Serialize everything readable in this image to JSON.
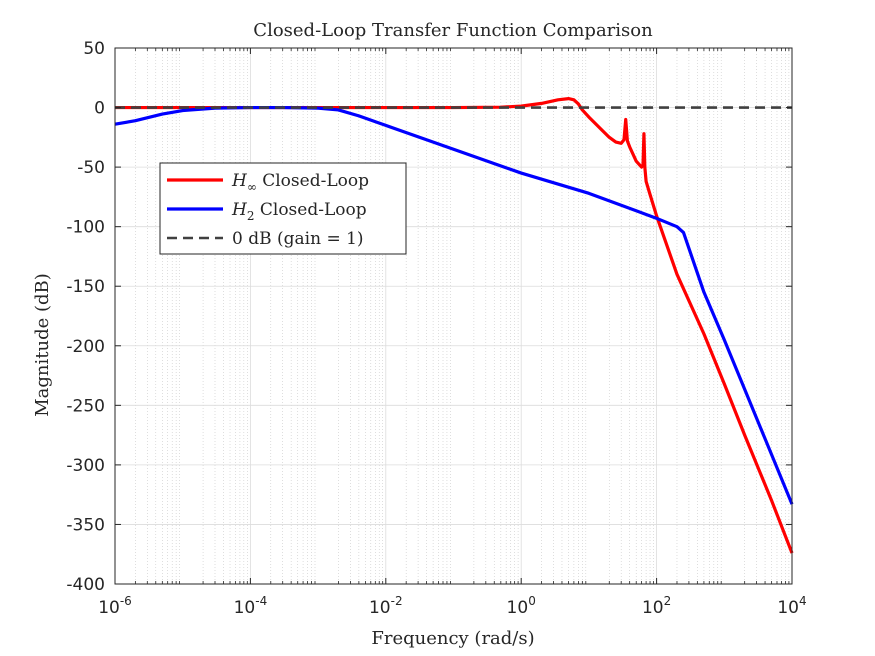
{
  "chart_data": {
    "type": "line",
    "title": "Closed-Loop Transfer Function Comparison",
    "xlabel": "Frequency (rad/s)",
    "ylabel": "Magnitude (dB)",
    "xscale": "log",
    "xlim": [
      1e-06,
      10000.0
    ],
    "ylim": [
      -400,
      50
    ],
    "grid": true,
    "minor_grid": true,
    "legend_position": "upper-left",
    "x_ticks": [
      {
        "value": 1e-06,
        "base": "10",
        "exp": "-6"
      },
      {
        "value": 0.0001,
        "base": "10",
        "exp": "-4"
      },
      {
        "value": 0.01,
        "base": "10",
        "exp": "-2"
      },
      {
        "value": 1,
        "base": "10",
        "exp": "0"
      },
      {
        "value": 100,
        "base": "10",
        "exp": "2"
      },
      {
        "value": 10000,
        "base": "10",
        "exp": "4"
      }
    ],
    "y_ticks": [
      {
        "value": 50,
        "label": "50"
      },
      {
        "value": 0,
        "label": "0"
      },
      {
        "value": -50,
        "label": "-50"
      },
      {
        "value": -100,
        "label": "-100"
      },
      {
        "value": -150,
        "label": "-150"
      },
      {
        "value": -200,
        "label": "-200"
      },
      {
        "value": -250,
        "label": "-250"
      },
      {
        "value": -300,
        "label": "-300"
      },
      {
        "value": -350,
        "label": "-350"
      },
      {
        "value": -400,
        "label": "-400"
      }
    ],
    "series": [
      {
        "name": "H∞ Closed-Loop",
        "legend_symbol": "H",
        "legend_subscript": "∞",
        "legend_suffix": " Closed-Loop",
        "color": "#ff0000",
        "dash": "solid",
        "points": [
          [
            1e-06,
            0
          ],
          [
            0.001,
            0
          ],
          [
            0.1,
            0
          ],
          [
            0.5,
            0.3
          ],
          [
            1,
            1.2
          ],
          [
            2,
            3.5
          ],
          [
            3.5,
            6.5
          ],
          [
            5,
            7.5
          ],
          [
            6,
            6.5
          ],
          [
            7,
            3
          ],
          [
            8,
            -2
          ],
          [
            10,
            -8
          ],
          [
            15,
            -18
          ],
          [
            20,
            -25
          ],
          [
            25,
            -29
          ],
          [
            30,
            -30
          ],
          [
            33,
            -27
          ],
          [
            35,
            -10
          ],
          [
            37,
            -28
          ],
          [
            40,
            -33
          ],
          [
            50,
            -45
          ],
          [
            60,
            -50
          ],
          [
            63,
            -48
          ],
          [
            65,
            -22
          ],
          [
            67,
            -50
          ],
          [
            70,
            -62
          ],
          [
            80,
            -73
          ],
          [
            100,
            -91
          ],
          [
            200,
            -140
          ],
          [
            500,
            -190
          ],
          [
            1000,
            -232
          ],
          [
            2000,
            -275
          ],
          [
            5000,
            -330
          ],
          [
            10000,
            -374
          ]
        ]
      },
      {
        "name": "H2 Closed-Loop",
        "legend_symbol": "H",
        "legend_subscript": "2",
        "legend_suffix": " Closed-Loop",
        "color": "#0000ff",
        "dash": "solid",
        "points": [
          [
            1e-06,
            -14
          ],
          [
            2e-06,
            -11
          ],
          [
            5e-06,
            -5.5
          ],
          [
            1e-05,
            -2.5
          ],
          [
            3e-05,
            -0.5
          ],
          [
            0.0001,
            0
          ],
          [
            0.0003,
            0
          ],
          [
            0.001,
            -0.5
          ],
          [
            0.002,
            -2
          ],
          [
            0.004,
            -7
          ],
          [
            0.01,
            -15
          ],
          [
            0.1,
            -35
          ],
          [
            1,
            -55
          ],
          [
            10,
            -72
          ],
          [
            100,
            -93
          ],
          [
            200,
            -100
          ],
          [
            250,
            -105
          ],
          [
            500,
            -155
          ],
          [
            1000,
            -195
          ],
          [
            10000,
            -333
          ]
        ]
      },
      {
        "name": "0 dB (gain = 1)",
        "color": "#404040",
        "dash": "dashed",
        "points": [
          [
            1e-06,
            0
          ],
          [
            10000,
            0
          ]
        ]
      }
    ]
  }
}
